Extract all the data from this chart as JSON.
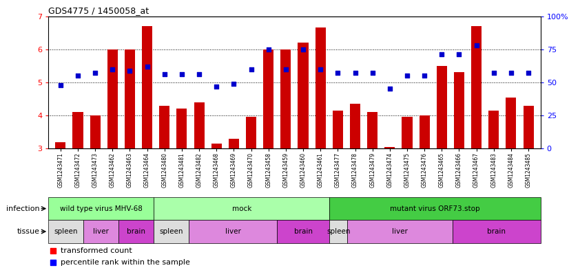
{
  "title": "GDS4775 / 1450058_at",
  "samples": [
    "GSM1243471",
    "GSM1243472",
    "GSM1243473",
    "GSM1243462",
    "GSM1243463",
    "GSM1243464",
    "GSM1243480",
    "GSM1243481",
    "GSM1243482",
    "GSM1243468",
    "GSM1243469",
    "GSM1243470",
    "GSM1243458",
    "GSM1243459",
    "GSM1243460",
    "GSM1243461",
    "GSM1243477",
    "GSM1243478",
    "GSM1243479",
    "GSM1243474",
    "GSM1243475",
    "GSM1243476",
    "GSM1243465",
    "GSM1243466",
    "GSM1243467",
    "GSM1243483",
    "GSM1243484",
    "GSM1243485"
  ],
  "bar_values": [
    3.2,
    4.1,
    4.0,
    6.0,
    6.0,
    6.7,
    4.3,
    4.2,
    4.4,
    3.15,
    3.3,
    3.95,
    6.0,
    6.0,
    6.2,
    6.65,
    4.15,
    4.35,
    4.1,
    3.05,
    3.95,
    4.0,
    5.5,
    5.3,
    6.7,
    4.15,
    4.55,
    4.3
  ],
  "dot_values": [
    48,
    55,
    57,
    60,
    59,
    62,
    56,
    56,
    56,
    47,
    49,
    60,
    75,
    60,
    75,
    60,
    57,
    57,
    57,
    45,
    55,
    55,
    71,
    71,
    78,
    57,
    57,
    57
  ],
  "ylim": [
    3,
    7
  ],
  "yticks": [
    3,
    4,
    5,
    6,
    7
  ],
  "y2ticks": [
    0,
    25,
    50,
    75,
    100
  ],
  "bar_color": "#cc0000",
  "dot_color": "#0000cc",
  "inf_groups": [
    {
      "label": "wild type virus MHV-68",
      "start": 0,
      "end": 6,
      "color": "#99ff99"
    },
    {
      "label": "mock",
      "start": 6,
      "end": 16,
      "color": "#aaffaa"
    },
    {
      "label": "mutant virus ORF73.stop",
      "start": 16,
      "end": 28,
      "color": "#44cc44"
    }
  ],
  "tissue_groups": [
    {
      "label": "spleen",
      "start": 0,
      "end": 2,
      "color": "#dddddd"
    },
    {
      "label": "liver",
      "start": 2,
      "end": 4,
      "color": "#dd88dd"
    },
    {
      "label": "brain",
      "start": 4,
      "end": 6,
      "color": "#cc44cc"
    },
    {
      "label": "spleen",
      "start": 6,
      "end": 8,
      "color": "#dddddd"
    },
    {
      "label": "liver",
      "start": 8,
      "end": 13,
      "color": "#dd88dd"
    },
    {
      "label": "brain",
      "start": 13,
      "end": 16,
      "color": "#cc44cc"
    },
    {
      "label": "spleen",
      "start": 16,
      "end": 17,
      "color": "#dddddd"
    },
    {
      "label": "liver",
      "start": 17,
      "end": 23,
      "color": "#dd88dd"
    },
    {
      "label": "brain",
      "start": 23,
      "end": 28,
      "color": "#cc44cc"
    }
  ]
}
